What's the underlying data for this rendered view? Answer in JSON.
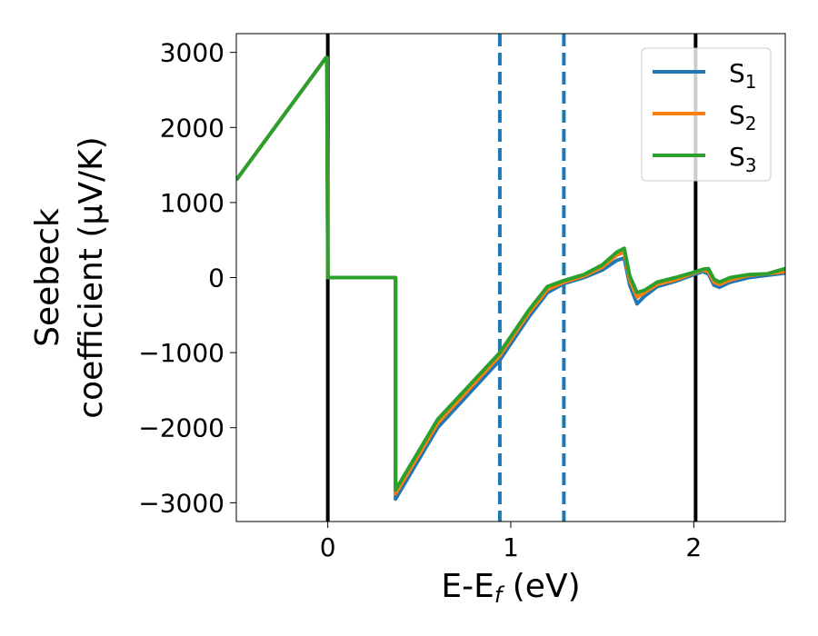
{
  "chart_data": {
    "type": "line",
    "xlabel": "E-E",
    "xlabel_sub": "f",
    "xlabel_unit": " (eV)",
    "ylabel_line1": "Seebeck",
    "ylabel_line2": "coefficient  (μV/K)",
    "xlim": [
      -0.5,
      2.5
    ],
    "ylim": [
      -3250,
      3250
    ],
    "x_ticks": [
      0,
      1,
      2
    ],
    "x_tick_labels": [
      "0",
      "1",
      "2"
    ],
    "y_ticks": [
      -3000,
      -2000,
      -1000,
      0,
      1000,
      2000,
      3000
    ],
    "y_tick_labels": [
      "−3000",
      "−2000",
      "−1000",
      "0",
      "1000",
      "2000",
      "3000"
    ],
    "grid": false,
    "legend_position": "top-right",
    "vertical_lines": [
      {
        "x": 0.0,
        "style": "solid",
        "color": "#000000"
      },
      {
        "x": 0.94,
        "style": "dashed",
        "color": "#1f77b4"
      },
      {
        "x": 1.29,
        "style": "dashed",
        "color": "#1f77b4"
      },
      {
        "x": 2.01,
        "style": "solid",
        "color": "#000000"
      }
    ],
    "series": [
      {
        "name": "S",
        "name_sub": "1",
        "color": "#1f77b4",
        "x": [
          -0.5,
          -0.01,
          -0.005,
          0.0,
          0.37,
          0.37,
          0.6,
          0.94,
          1.1,
          1.2,
          1.29,
          1.4,
          1.5,
          1.58,
          1.62,
          1.65,
          1.69,
          1.73,
          1.8,
          1.9,
          2.0,
          2.05,
          2.08,
          2.11,
          2.14,
          2.2,
          2.3,
          2.4,
          2.5
        ],
        "y": [
          1300,
          2930,
          2930,
          0,
          0,
          -2950,
          -2000,
          -1100,
          -520,
          -200,
          -80,
          0,
          100,
          230,
          260,
          -100,
          -350,
          -250,
          -120,
          -50,
          40,
          80,
          50,
          -100,
          -130,
          -60,
          0,
          30,
          60
        ]
      },
      {
        "name": "S",
        "name_sub": "2",
        "color": "#ff7f0e",
        "x": [
          -0.5,
          -0.01,
          -0.005,
          0.0,
          0.37,
          0.37,
          0.6,
          0.94,
          1.1,
          1.2,
          1.29,
          1.4,
          1.5,
          1.58,
          1.62,
          1.65,
          1.69,
          1.73,
          1.8,
          1.9,
          2.0,
          2.05,
          2.08,
          2.11,
          2.14,
          2.2,
          2.3,
          2.4,
          2.5
        ],
        "y": [
          1300,
          2930,
          2930,
          0,
          0,
          -2880,
          -1940,
          -1040,
          -470,
          -160,
          -60,
          20,
          140,
          300,
          340,
          -30,
          -260,
          -200,
          -90,
          -30,
          60,
          100,
          80,
          -60,
          -90,
          -30,
          30,
          50,
          80
        ]
      },
      {
        "name": "S",
        "name_sub": "3",
        "color": "#2ca02c",
        "x": [
          -0.5,
          -0.01,
          -0.005,
          0.0,
          0.37,
          0.37,
          0.6,
          0.94,
          1.1,
          1.2,
          1.29,
          1.4,
          1.5,
          1.58,
          1.62,
          1.65,
          1.69,
          1.73,
          1.8,
          1.9,
          2.0,
          2.05,
          2.08,
          2.11,
          2.14,
          2.2,
          2.3,
          2.4,
          2.5
        ],
        "y": [
          1300,
          2930,
          2930,
          0,
          0,
          -2830,
          -1890,
          -1000,
          -430,
          -120,
          -40,
          40,
          170,
          340,
          390,
          20,
          -200,
          -170,
          -60,
          0,
          70,
          110,
          120,
          -20,
          -60,
          0,
          40,
          50,
          120
        ]
      }
    ]
  }
}
